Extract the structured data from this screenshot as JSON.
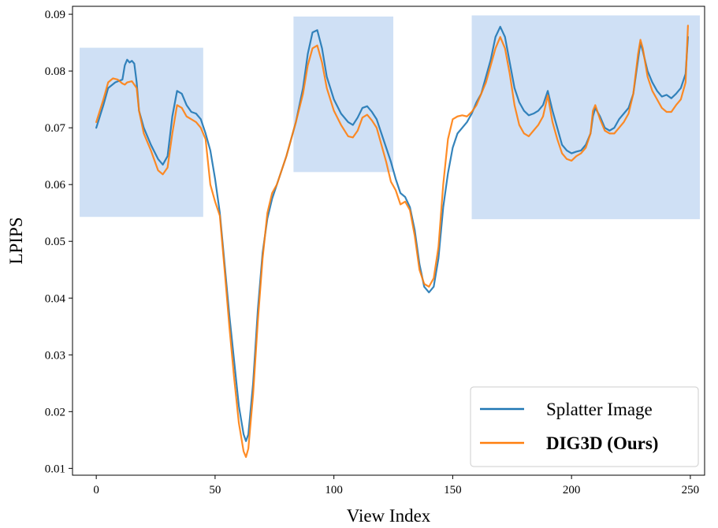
{
  "chart_data": {
    "type": "line",
    "xlabel": "View Index",
    "ylabel": "LPIPS",
    "xlim": [
      -10,
      256
    ],
    "ylim": [
      0.0088,
      0.0914
    ],
    "xticks": [
      0,
      50,
      100,
      150,
      200,
      250
    ],
    "yticks": [
      0.01,
      0.02,
      0.03,
      0.04,
      0.05,
      0.06,
      0.07,
      0.08,
      0.09
    ],
    "grid": false,
    "legend": {
      "position": "bottom-right"
    },
    "highlight_regions": [
      {
        "x": [
          -7,
          45
        ],
        "y": [
          0.0543,
          0.0841
        ]
      },
      {
        "x": [
          83,
          125
        ],
        "y": [
          0.0622,
          0.0896
        ]
      },
      {
        "x": [
          158,
          254
        ],
        "y": [
          0.0539,
          0.0898
        ]
      }
    ],
    "series": [
      {
        "name": "Splatter Image",
        "color": "#1f77b4",
        "points": [
          [
            0,
            0.07
          ],
          [
            3,
            0.074
          ],
          [
            5,
            0.077
          ],
          [
            8,
            0.078
          ],
          [
            11,
            0.0785
          ],
          [
            12,
            0.081
          ],
          [
            13,
            0.082
          ],
          [
            14,
            0.0815
          ],
          [
            15,
            0.0818
          ],
          [
            16,
            0.0813
          ],
          [
            17,
            0.078
          ],
          [
            18,
            0.073
          ],
          [
            20,
            0.07
          ],
          [
            23,
            0.067
          ],
          [
            26,
            0.0645
          ],
          [
            28,
            0.0635
          ],
          [
            30,
            0.065
          ],
          [
            32,
            0.072
          ],
          [
            34,
            0.0765
          ],
          [
            36,
            0.076
          ],
          [
            38,
            0.074
          ],
          [
            40,
            0.0728
          ],
          [
            42,
            0.0725
          ],
          [
            44,
            0.0715
          ],
          [
            46,
            0.069
          ],
          [
            48,
            0.066
          ],
          [
            50,
            0.061
          ],
          [
            52,
            0.055
          ],
          [
            54,
            0.046
          ],
          [
            56,
            0.037
          ],
          [
            58,
            0.029
          ],
          [
            60,
            0.021
          ],
          [
            62,
            0.016
          ],
          [
            63,
            0.0148
          ],
          [
            64,
            0.016
          ],
          [
            66,
            0.025
          ],
          [
            68,
            0.038
          ],
          [
            70,
            0.048
          ],
          [
            72,
            0.054
          ],
          [
            74,
            0.0575
          ],
          [
            76,
            0.06
          ],
          [
            80,
            0.065
          ],
          [
            84,
            0.071
          ],
          [
            87,
            0.077
          ],
          [
            89,
            0.083
          ],
          [
            91,
            0.0868
          ],
          [
            93,
            0.0872
          ],
          [
            95,
            0.084
          ],
          [
            97,
            0.079
          ],
          [
            100,
            0.075
          ],
          [
            103,
            0.0725
          ],
          [
            106,
            0.071
          ],
          [
            108,
            0.0705
          ],
          [
            110,
            0.0718
          ],
          [
            112,
            0.0735
          ],
          [
            114,
            0.0738
          ],
          [
            116,
            0.0728
          ],
          [
            118,
            0.0715
          ],
          [
            120,
            0.069
          ],
          [
            122,
            0.0665
          ],
          [
            124,
            0.064
          ],
          [
            126,
            0.061
          ],
          [
            128,
            0.0585
          ],
          [
            130,
            0.0578
          ],
          [
            132,
            0.056
          ],
          [
            134,
            0.052
          ],
          [
            136,
            0.046
          ],
          [
            138,
            0.042
          ],
          [
            140,
            0.041
          ],
          [
            142,
            0.042
          ],
          [
            144,
            0.047
          ],
          [
            146,
            0.056
          ],
          [
            148,
            0.062
          ],
          [
            150,
            0.0665
          ],
          [
            152,
            0.069
          ],
          [
            154,
            0.07
          ],
          [
            156,
            0.071
          ],
          [
            158,
            0.0725
          ],
          [
            160,
            0.0745
          ],
          [
            162,
            0.076
          ],
          [
            164,
            0.079
          ],
          [
            166,
            0.082
          ],
          [
            168,
            0.086
          ],
          [
            170,
            0.0878
          ],
          [
            172,
            0.086
          ],
          [
            174,
            0.0815
          ],
          [
            176,
            0.077
          ],
          [
            178,
            0.0745
          ],
          [
            180,
            0.073
          ],
          [
            182,
            0.0722
          ],
          [
            184,
            0.0725
          ],
          [
            186,
            0.073
          ],
          [
            188,
            0.074
          ],
          [
            190,
            0.0765
          ],
          [
            192,
            0.073
          ],
          [
            194,
            0.07
          ],
          [
            196,
            0.067
          ],
          [
            198,
            0.066
          ],
          [
            200,
            0.0655
          ],
          [
            202,
            0.0658
          ],
          [
            204,
            0.066
          ],
          [
            206,
            0.067
          ],
          [
            208,
            0.069
          ],
          [
            209,
            0.072
          ],
          [
            210,
            0.0735
          ],
          [
            212,
            0.072
          ],
          [
            214,
            0.07
          ],
          [
            216,
            0.0695
          ],
          [
            218,
            0.07
          ],
          [
            220,
            0.0715
          ],
          [
            222,
            0.0725
          ],
          [
            224,
            0.0735
          ],
          [
            226,
            0.076
          ],
          [
            228,
            0.082
          ],
          [
            229,
            0.085
          ],
          [
            230,
            0.0835
          ],
          [
            232,
            0.08
          ],
          [
            234,
            0.078
          ],
          [
            236,
            0.0765
          ],
          [
            238,
            0.0755
          ],
          [
            240,
            0.0758
          ],
          [
            242,
            0.0752
          ],
          [
            244,
            0.076
          ],
          [
            246,
            0.077
          ],
          [
            248,
            0.0795
          ],
          [
            249,
            0.086
          ]
        ]
      },
      {
        "name": "DIG3D (Ours)",
        "color": "#ff7f0e",
        "points": [
          [
            0,
            0.071
          ],
          [
            3,
            0.075
          ],
          [
            5,
            0.078
          ],
          [
            7,
            0.0787
          ],
          [
            9,
            0.0785
          ],
          [
            11,
            0.0778
          ],
          [
            12,
            0.0776
          ],
          [
            13,
            0.078
          ],
          [
            15,
            0.0782
          ],
          [
            17,
            0.077
          ],
          [
            18,
            0.073
          ],
          [
            20,
            0.069
          ],
          [
            23,
            0.066
          ],
          [
            26,
            0.0625
          ],
          [
            28,
            0.0618
          ],
          [
            30,
            0.063
          ],
          [
            32,
            0.069
          ],
          [
            34,
            0.074
          ],
          [
            36,
            0.0735
          ],
          [
            38,
            0.072
          ],
          [
            40,
            0.0715
          ],
          [
            42,
            0.071
          ],
          [
            44,
            0.07
          ],
          [
            46,
            0.068
          ],
          [
            48,
            0.06
          ],
          [
            50,
            0.057
          ],
          [
            52,
            0.0545
          ],
          [
            54,
            0.045
          ],
          [
            56,
            0.035
          ],
          [
            58,
            0.026
          ],
          [
            60,
            0.018
          ],
          [
            62,
            0.013
          ],
          [
            63,
            0.012
          ],
          [
            64,
            0.0135
          ],
          [
            66,
            0.023
          ],
          [
            68,
            0.036
          ],
          [
            70,
            0.047
          ],
          [
            72,
            0.055
          ],
          [
            74,
            0.0585
          ],
          [
            76,
            0.06
          ],
          [
            80,
            0.065
          ],
          [
            84,
            0.071
          ],
          [
            87,
            0.076
          ],
          [
            89,
            0.081
          ],
          [
            91,
            0.084
          ],
          [
            93,
            0.0845
          ],
          [
            95,
            0.0815
          ],
          [
            97,
            0.077
          ],
          [
            100,
            0.073
          ],
          [
            103,
            0.0705
          ],
          [
            106,
            0.0685
          ],
          [
            108,
            0.0683
          ],
          [
            110,
            0.0695
          ],
          [
            112,
            0.0718
          ],
          [
            114,
            0.0723
          ],
          [
            116,
            0.0713
          ],
          [
            118,
            0.07
          ],
          [
            120,
            0.067
          ],
          [
            122,
            0.064
          ],
          [
            124,
            0.0605
          ],
          [
            126,
            0.059
          ],
          [
            128,
            0.0565
          ],
          [
            130,
            0.057
          ],
          [
            132,
            0.0555
          ],
          [
            134,
            0.051
          ],
          [
            136,
            0.045
          ],
          [
            138,
            0.0425
          ],
          [
            140,
            0.042
          ],
          [
            142,
            0.0435
          ],
          [
            144,
            0.049
          ],
          [
            146,
            0.06
          ],
          [
            148,
            0.068
          ],
          [
            150,
            0.0715
          ],
          [
            152,
            0.072
          ],
          [
            154,
            0.0722
          ],
          [
            156,
            0.072
          ],
          [
            158,
            0.0728
          ],
          [
            160,
            0.074
          ],
          [
            162,
            0.076
          ],
          [
            164,
            0.078
          ],
          [
            166,
            0.081
          ],
          [
            168,
            0.084
          ],
          [
            170,
            0.086
          ],
          [
            172,
            0.084
          ],
          [
            174,
            0.0795
          ],
          [
            176,
            0.074
          ],
          [
            178,
            0.0705
          ],
          [
            180,
            0.069
          ],
          [
            182,
            0.0685
          ],
          [
            184,
            0.0695
          ],
          [
            186,
            0.0705
          ],
          [
            188,
            0.072
          ],
          [
            190,
            0.0757
          ],
          [
            192,
            0.071
          ],
          [
            194,
            0.068
          ],
          [
            196,
            0.0655
          ],
          [
            198,
            0.0645
          ],
          [
            200,
            0.0642
          ],
          [
            202,
            0.065
          ],
          [
            204,
            0.0655
          ],
          [
            206,
            0.0665
          ],
          [
            208,
            0.069
          ],
          [
            209,
            0.073
          ],
          [
            210,
            0.074
          ],
          [
            212,
            0.0715
          ],
          [
            214,
            0.0695
          ],
          [
            216,
            0.069
          ],
          [
            218,
            0.069
          ],
          [
            220,
            0.07
          ],
          [
            222,
            0.071
          ],
          [
            224,
            0.0725
          ],
          [
            226,
            0.076
          ],
          [
            228,
            0.083
          ],
          [
            229,
            0.0855
          ],
          [
            230,
            0.084
          ],
          [
            232,
            0.079
          ],
          [
            234,
            0.0765
          ],
          [
            236,
            0.075
          ],
          [
            238,
            0.0735
          ],
          [
            240,
            0.0728
          ],
          [
            242,
            0.0728
          ],
          [
            244,
            0.074
          ],
          [
            246,
            0.075
          ],
          [
            248,
            0.078
          ],
          [
            249,
            0.088
          ]
        ]
      }
    ]
  }
}
